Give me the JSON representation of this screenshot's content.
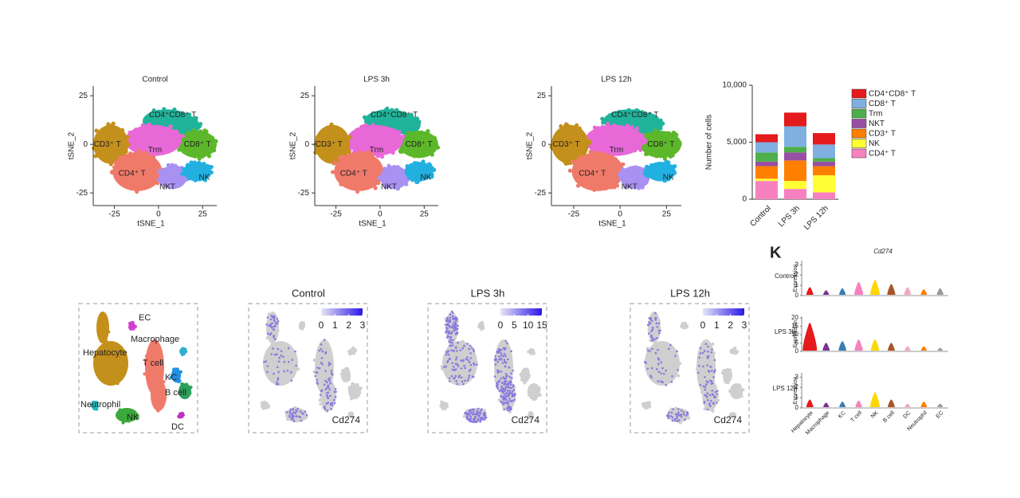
{
  "chart_data": [
    {
      "type": "scatter",
      "title": "Control",
      "xlabel": "tSNE_1",
      "ylabel": "tSNE_2",
      "xlim": [
        -37,
        33
      ],
      "ylim": [
        -31.5,
        30
      ],
      "xticks": [
        -25,
        0,
        25
      ],
      "yticks": [
        -25,
        0,
        25
      ],
      "clusters": [
        {
          "name": "CD4⁺CD8⁺ T",
          "color": "#21b39b"
        },
        {
          "name": "CD8⁺ T",
          "color": "#5cb82a"
        },
        {
          "name": "Trm",
          "color": "#e868d8"
        },
        {
          "name": "CD3⁺ T",
          "color": "#c4901c"
        },
        {
          "name": "CD4⁺ T",
          "color": "#f07a6a"
        },
        {
          "name": "NKT",
          "color": "#a991f2"
        },
        {
          "name": "NK",
          "color": "#22b0e0"
        }
      ]
    },
    {
      "type": "scatter",
      "title": "LPS 3h",
      "xlabel": "tSNE_1",
      "ylabel": "tSNE_2",
      "xlim": [
        -37,
        33
      ],
      "ylim": [
        -31.5,
        30
      ],
      "xticks": [
        -25,
        0,
        25
      ],
      "yticks": [
        -25,
        0,
        25
      ],
      "clusters": [
        {
          "name": "CD4⁺CD8⁺ T",
          "color": "#21b39b"
        },
        {
          "name": "CD8⁺ T",
          "color": "#5cb82a"
        },
        {
          "name": "Trm",
          "color": "#e868d8"
        },
        {
          "name": "CD3⁺ T",
          "color": "#c4901c"
        },
        {
          "name": "CD4⁺ T",
          "color": "#f07a6a"
        },
        {
          "name": "NKT",
          "color": "#a991f2"
        },
        {
          "name": "NK",
          "color": "#22b0e0"
        }
      ]
    },
    {
      "type": "scatter",
      "title": "LPS 12h",
      "xlabel": "tSNE_1",
      "ylabel": "tSNE_2",
      "xlim": [
        -37,
        33
      ],
      "ylim": [
        -31.5,
        30
      ],
      "xticks": [
        -25,
        0,
        25
      ],
      "yticks": [
        -25,
        0,
        25
      ],
      "clusters": [
        {
          "name": "CD4⁺CD8⁺ T",
          "color": "#21b39b"
        },
        {
          "name": "CD8⁺ T",
          "color": "#5cb82a"
        },
        {
          "name": "Trm",
          "color": "#e868d8"
        },
        {
          "name": "CD3⁺ T",
          "color": "#c4901c"
        },
        {
          "name": "CD4⁺ T",
          "color": "#f07a6a"
        },
        {
          "name": "NKT",
          "color": "#a991f2"
        },
        {
          "name": "NK",
          "color": "#22b0e0"
        }
      ]
    },
    {
      "type": "bar",
      "ylabel": "Number of cells",
      "categories": [
        "Control",
        "LPS 3h",
        "LPS 12h"
      ],
      "ylim": [
        0,
        10000
      ],
      "yticks": [
        0,
        {
          "value": 5000,
          "label": "5,000"
        },
        {
          "value": 10000,
          "label": "10,000"
        }
      ],
      "series": [
        {
          "name": "CD4⁺ T",
          "color": "#f781bf",
          "values": [
            1600,
            900,
            600
          ]
        },
        {
          "name": "NK",
          "color": "#ffff33",
          "values": [
            200,
            700,
            1500
          ]
        },
        {
          "name": "CD3⁺ T",
          "color": "#ff7f00",
          "values": [
            1100,
            1800,
            800
          ]
        },
        {
          "name": "NKT",
          "color": "#984ea3",
          "values": [
            400,
            700,
            400
          ]
        },
        {
          "name": "Trm",
          "color": "#4daf4a",
          "values": [
            800,
            500,
            300
          ]
        },
        {
          "name": "CD8⁺ T",
          "color": "#7fb0e0",
          "values": [
            900,
            1800,
            1200
          ]
        },
        {
          "name": "CD4⁺CD8⁺ T",
          "color": "#e41a1c",
          "values": [
            700,
            1200,
            1000
          ]
        }
      ]
    },
    {
      "type": "embedding",
      "clusters": [
        {
          "name": "Hepatocyte",
          "color": "#c4901c"
        },
        {
          "name": "T cell",
          "color": "#f07a6a"
        },
        {
          "name": "NK",
          "color": "#3aa83a"
        },
        {
          "name": "Neutrophil",
          "color": "#22b8c0"
        },
        {
          "name": "KC",
          "color": "#2090e0"
        },
        {
          "name": "B cell",
          "color": "#2ca05a"
        },
        {
          "name": "EC",
          "color": "#d040d0"
        },
        {
          "name": "Macrophage",
          "color": "#30b0d0"
        },
        {
          "name": "DC",
          "color": "#c030c0"
        }
      ]
    },
    {
      "type": "feature",
      "title": "Control",
      "gene": "Cd274",
      "clim": [
        0,
        3
      ],
      "cticks": [
        0,
        1,
        2,
        3
      ]
    },
    {
      "type": "feature",
      "title": "LPS 3h",
      "gene": "Cd274",
      "clim": [
        0,
        15
      ],
      "cticks": [
        0,
        5,
        10,
        15
      ]
    },
    {
      "type": "feature",
      "title": "LPS 12h",
      "gene": "Cd274",
      "clim": [
        0,
        3
      ],
      "cticks": [
        0,
        1,
        2,
        3
      ]
    },
    {
      "type": "violin",
      "panel": "K",
      "title": "Cd274",
      "ylabel": "Expression",
      "categories": [
        "Hepatocyte",
        "Macrophage",
        "KC",
        "T cell",
        "NK",
        "B cell",
        "DC",
        "Neutrophil",
        "EC"
      ],
      "colors": [
        "#e41a1c",
        "#7b3294",
        "#377eb8",
        "#f781bf",
        "#ffd700",
        "#a65628",
        "#f4a6c6",
        "#ff7f00",
        "#999999"
      ],
      "rows": [
        {
          "name": "Control",
          "ylim": [
            0,
            3.4
          ],
          "yticks": [
            0,
            1,
            2,
            3
          ],
          "values": [
            0.8,
            0.5,
            0.7,
            1.3,
            1.5,
            1.1,
            0.8,
            0.6,
            0.7
          ]
        },
        {
          "name": "LPS 3h",
          "ylim": [
            0,
            21
          ],
          "yticks": [
            0,
            5,
            10,
            15,
            20
          ],
          "values": [
            17,
            5,
            6,
            7,
            7,
            5,
            3,
            3,
            2
          ]
        },
        {
          "name": "LPS 12h",
          "ylim": [
            0,
            3.4
          ],
          "yticks": [
            0,
            1,
            2,
            3
          ],
          "values": [
            0.8,
            0.5,
            0.6,
            0.7,
            1.5,
            0.8,
            0.4,
            0.6,
            0.4
          ]
        }
      ]
    }
  ]
}
